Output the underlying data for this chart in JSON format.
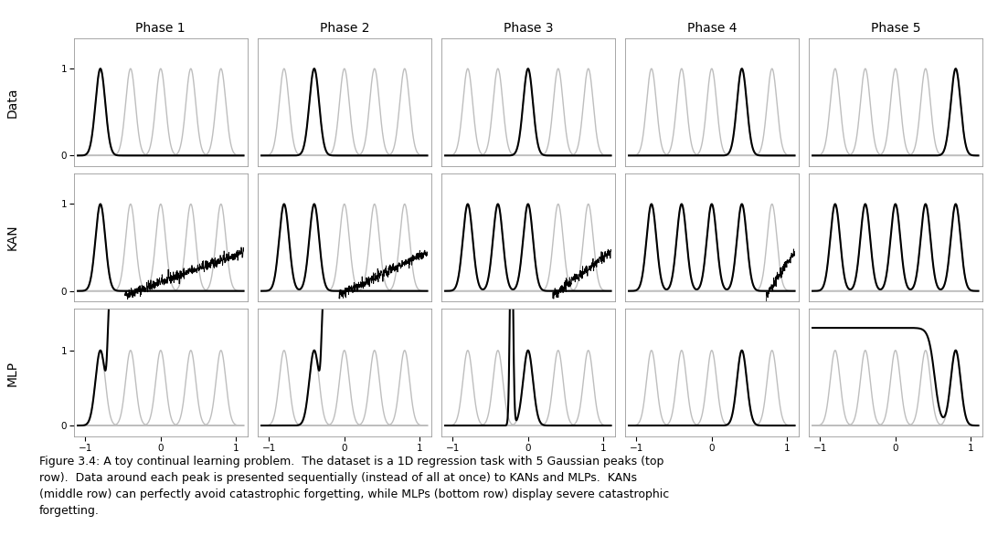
{
  "phases": [
    "Phase 1",
    "Phase 2",
    "Phase 3",
    "Phase 4",
    "Phase 5"
  ],
  "row_labels": [
    "Data",
    "KAN",
    "MLP"
  ],
  "n_peaks": 5,
  "peak_centers": [
    -0.8,
    -0.4,
    0.0,
    0.4,
    0.8
  ],
  "peak_sigma": 0.065,
  "x_ticks": [
    -1,
    0,
    1
  ],
  "y_ticks": [
    0,
    1
  ],
  "gray_color": "#bebebe",
  "black_color": "#000000",
  "background_color": "#ffffff",
  "caption": "Figure 3.4: A toy continual learning problem.  The dataset is a 1D regression task with 5 Gaussian peaks (top\nrow).  Data around each peak is presented sequentially (instead of all at once) to KANs and MLPs.  KANs\n(middle row) can perfectly avoid catastrophic forgetting, while MLPs (bottom row) display severe catastrophic\nforgetting.",
  "lw_gray": 1.0,
  "lw_black": 1.5,
  "lw_noisy": 0.6
}
